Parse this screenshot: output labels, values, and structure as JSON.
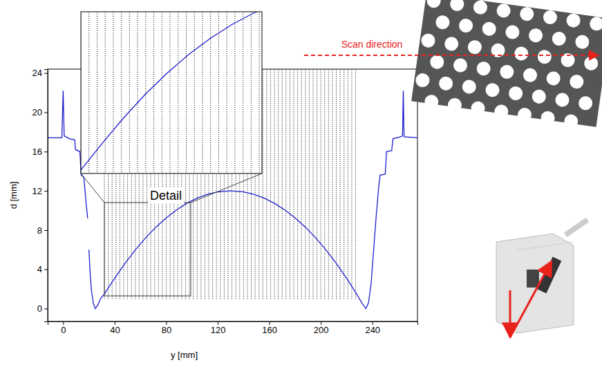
{
  "chart_data": {
    "type": "line",
    "x_label": "y [mm]",
    "y_label": "d [mm]",
    "xlim": [
      -12,
      275
    ],
    "ylim": [
      -1.3,
      24.4
    ],
    "xticks": [
      0,
      40,
      80,
      120,
      160,
      200,
      240
    ],
    "yticks": [
      0,
      4,
      8,
      12,
      16,
      20,
      24
    ],
    "grid": false,
    "x": [
      -12,
      -1,
      0,
      0.8,
      5,
      9,
      9.5,
      13,
      13.5,
      14,
      16,
      17,
      18,
      19,
      19.5,
      20,
      21,
      22,
      23.5,
      25,
      27,
      29,
      32,
      40,
      48,
      56,
      64,
      72,
      80,
      88,
      96,
      104,
      112,
      120,
      130,
      140,
      148,
      156,
      164,
      172,
      180,
      188,
      196,
      204,
      212,
      220,
      228,
      232,
      235,
      237,
      239,
      241,
      243,
      245,
      246,
      250,
      251,
      255,
      256,
      262,
      263.4,
      264,
      264.6,
      275
    ],
    "series": [
      {
        "color": "#1c1ccf",
        "line_style": "solid",
        "values": [
          17.4,
          17.4,
          22.2,
          17.6,
          17.3,
          17.2,
          16.2,
          16.0,
          14.8,
          13.6,
          13.4,
          12.0,
          10.5,
          9.2,
          null,
          6.0,
          3.5,
          1.8,
          0.5,
          0.0,
          0.4,
          1.0,
          1.5,
          3.09,
          4.6,
          5.98,
          7.21,
          8.3,
          9.25,
          10.06,
          10.73,
          11.26,
          11.64,
          11.89,
          12.0,
          11.89,
          11.64,
          11.26,
          10.73,
          10.06,
          9.25,
          8.3,
          7.21,
          5.98,
          4.6,
          3.09,
          1.44,
          0.56,
          0.0,
          0.6,
          2.5,
          6.0,
          9.5,
          12.5,
          13.6,
          13.7,
          16.0,
          16.1,
          17.3,
          17.5,
          17.6,
          22.2,
          17.5,
          17.4
        ]
      }
    ],
    "hole_y": [
      32,
      35,
      38,
      41,
      44,
      47,
      50,
      53,
      56,
      59,
      62,
      65,
      68,
      71,
      74,
      77,
      80,
      83,
      86,
      89,
      92,
      95,
      98,
      101,
      104,
      107,
      110,
      113,
      116,
      119,
      122,
      125,
      128,
      131,
      134,
      137,
      140,
      143,
      146,
      149,
      152,
      155,
      158,
      161,
      164,
      167,
      170,
      173,
      176,
      179,
      182,
      185,
      188,
      191,
      194,
      197,
      200,
      203,
      206,
      209,
      212,
      215,
      218,
      221,
      224,
      227
    ],
    "detail": {
      "label": "Detail",
      "xlim": [
        32,
        99
      ],
      "ylim": [
        1.3,
        10.8
      ]
    },
    "scan_label": "Scan direction"
  }
}
